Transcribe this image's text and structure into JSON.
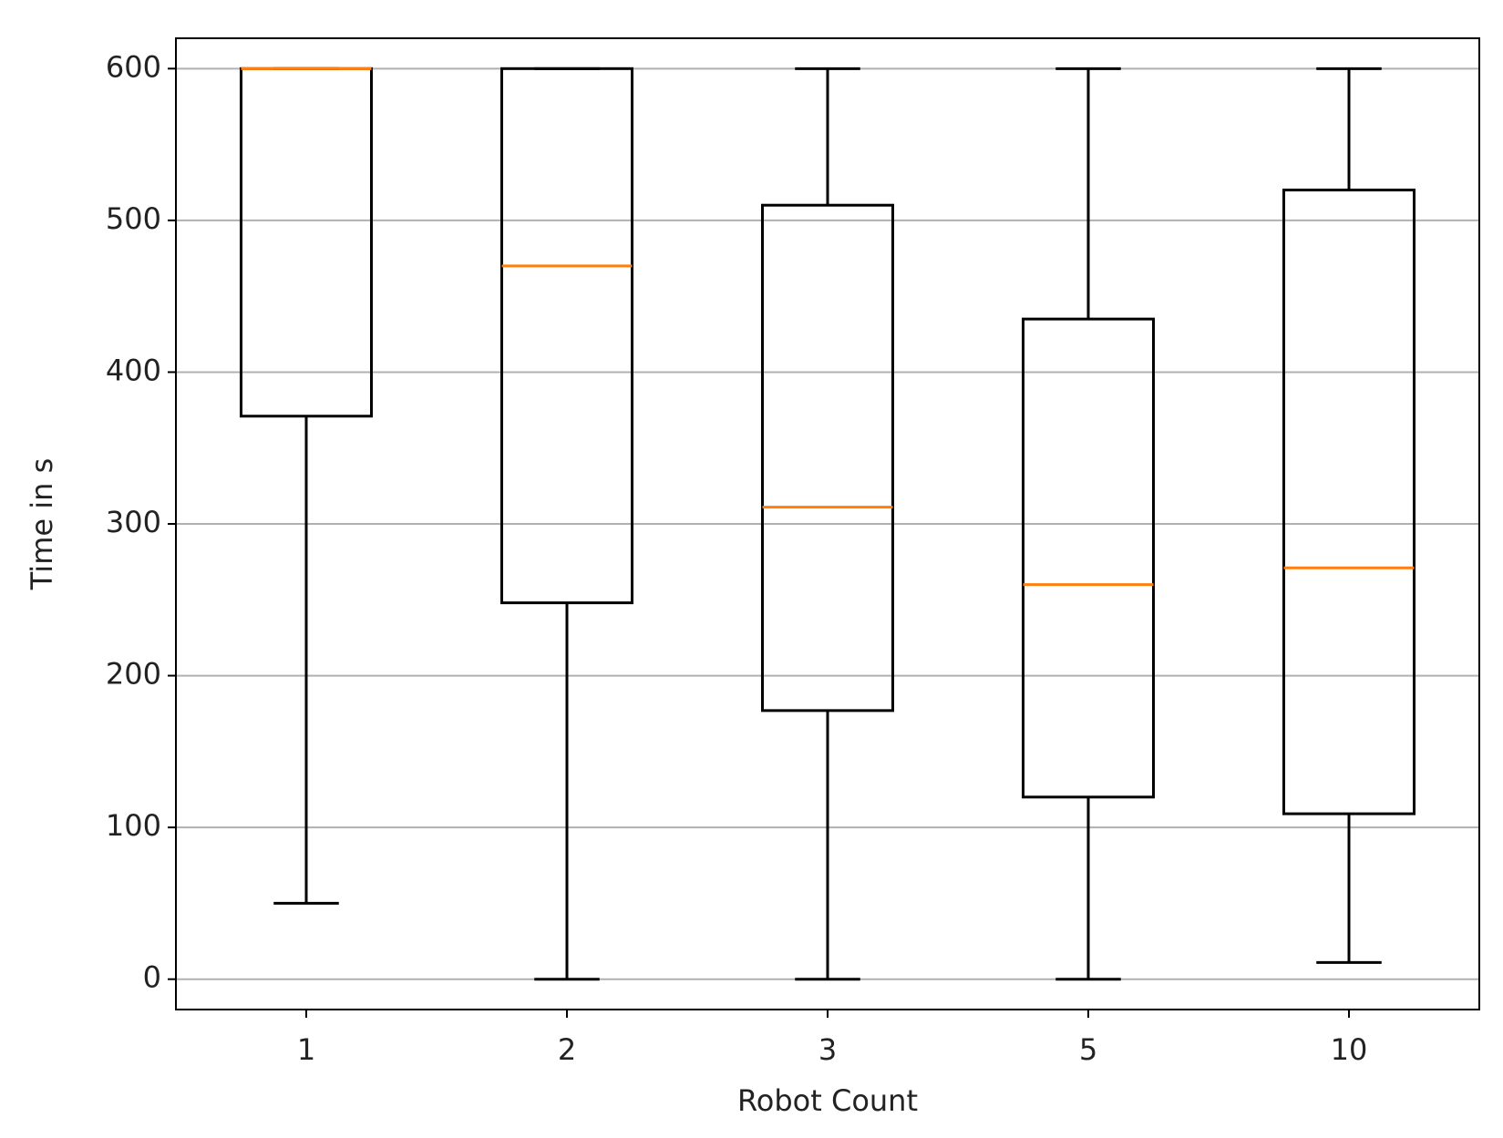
{
  "chart_data": {
    "type": "box",
    "x_label": "Robot Count",
    "y_label": "Time in s",
    "categories": [
      "1",
      "2",
      "3",
      "5",
      "10"
    ],
    "boxes": [
      {
        "whislo": 50,
        "q1": 371,
        "med": 600,
        "q3": 600,
        "whishi": 600
      },
      {
        "whislo": 0,
        "q1": 248,
        "med": 470,
        "q3": 600,
        "whishi": 600
      },
      {
        "whislo": 0,
        "q1": 177,
        "med": 311,
        "q3": 510,
        "whishi": 600
      },
      {
        "whislo": 0,
        "q1": 120,
        "med": 260,
        "q3": 435,
        "whishi": 600
      },
      {
        "whislo": 11,
        "q1": 109,
        "med": 271,
        "q3": 520,
        "whishi": 600
      }
    ],
    "box_color": "#000000",
    "median_color": "#ff7f0e",
    "ylim": [
      -20,
      620
    ],
    "yticks": [
      0,
      100,
      200,
      300,
      400,
      500,
      600
    ],
    "grid": true
  }
}
